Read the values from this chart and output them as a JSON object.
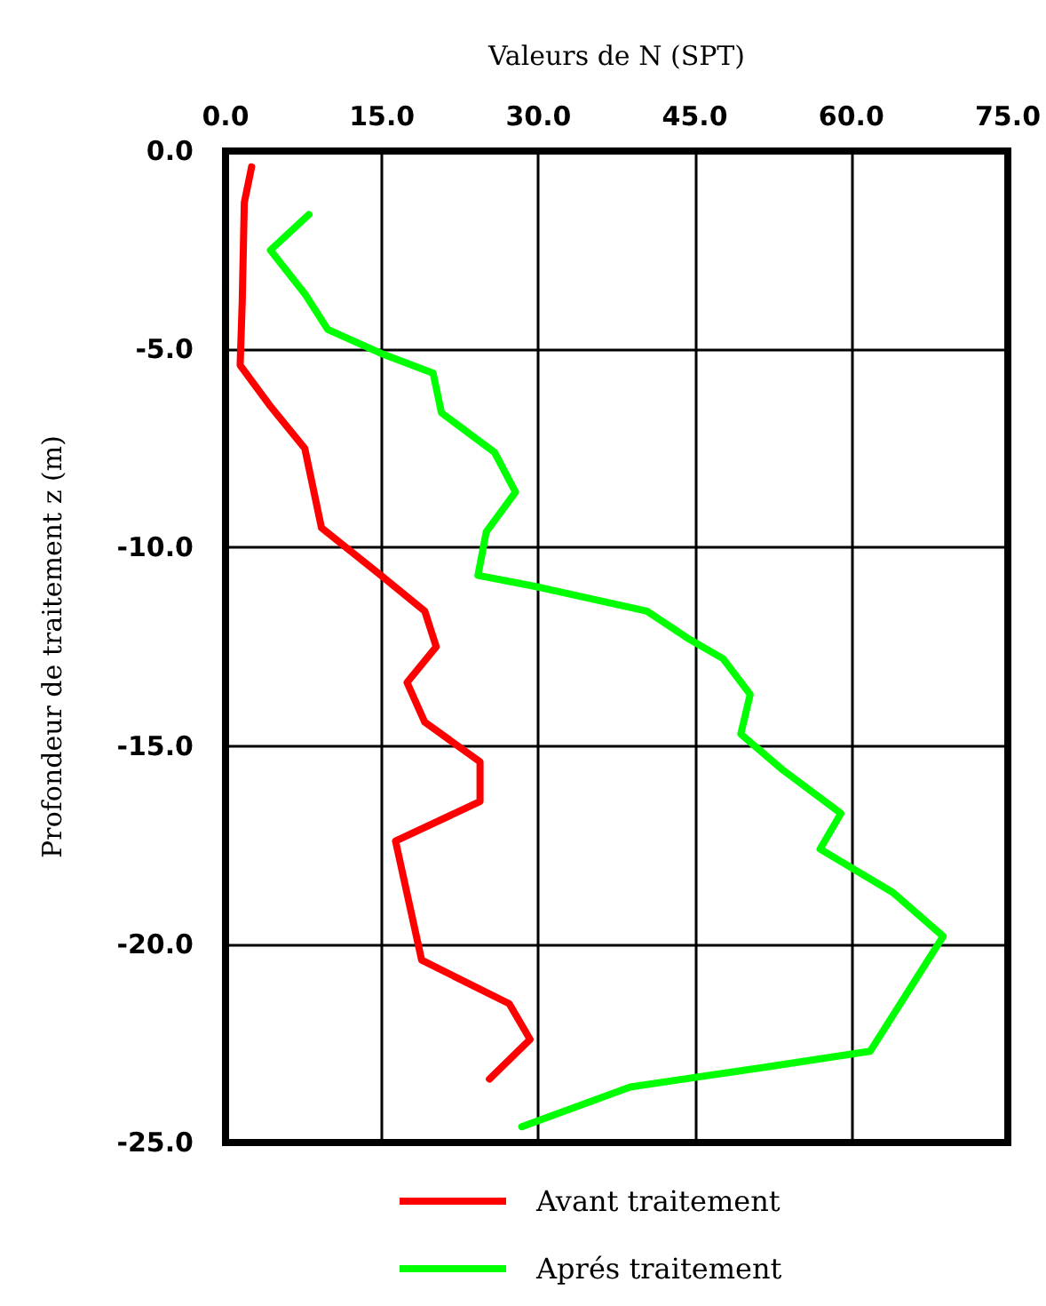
{
  "chart_data": {
    "type": "line",
    "xlabel": "Valeurs de N (SPT)",
    "ylabel": "Profondeur de traitement z (m)",
    "xlim": [
      0,
      75
    ],
    "xticks": [
      {
        "value": 0,
        "label": "0.0"
      },
      {
        "value": 15,
        "label": "15.0"
      },
      {
        "value": 30,
        "label": "30.0"
      },
      {
        "value": 45,
        "label": "45.0"
      },
      {
        "value": 60,
        "label": "60.0"
      },
      {
        "value": 75,
        "label": "75.0"
      }
    ],
    "ylim": [
      -25,
      0
    ],
    "yticks": [
      {
        "value": 0,
        "label": "0.0"
      },
      {
        "value": -5,
        "label": "-5.0"
      },
      {
        "value": -10,
        "label": "-10.0"
      },
      {
        "value": -15,
        "label": "-15.0"
      },
      {
        "value": -20,
        "label": "-20.0"
      },
      {
        "value": -25,
        "label": "-25.0"
      }
    ],
    "grid": true,
    "legend": "bottom",
    "marker": "none",
    "line_style": "solid",
    "series": [
      {
        "name": "Avant traitement",
        "color": "#ff0000",
        "x": [
          2.5,
          1.8,
          1.6,
          1.4,
          4.2,
          7.6,
          9.2,
          14.9,
          19.1,
          20.2,
          17.4,
          19.1,
          24.4,
          24.4,
          16.3,
          18.8,
          27.2,
          29.2,
          25.3
        ],
        "values": [
          -0.4,
          -1.3,
          -3.8,
          -5.4,
          -6.4,
          -7.5,
          -9.5,
          -10.7,
          -11.6,
          -12.5,
          -13.4,
          -14.4,
          -15.4,
          -16.4,
          -17.4,
          -20.4,
          -21.5,
          -22.4,
          -23.4
        ]
      },
      {
        "name": "Aprés traitement",
        "color": "#00ff00",
        "x": [
          8.0,
          4.3,
          7.6,
          9.8,
          14.9,
          19.9,
          20.7,
          25.8,
          27.8,
          25.0,
          24.2,
          30.1,
          40.4,
          44.4,
          47.7,
          50.3,
          49.4,
          53.4,
          59.0,
          57.0,
          64.0,
          68.8,
          61.8,
          51.7,
          38.8,
          28.4
        ],
        "values": [
          -1.6,
          -2.5,
          -3.6,
          -4.5,
          -5.1,
          -5.6,
          -6.6,
          -7.6,
          -8.6,
          -9.6,
          -10.7,
          -11.0,
          -11.6,
          -12.3,
          -12.8,
          -13.7,
          -14.7,
          -15.6,
          -16.7,
          -17.6,
          -18.7,
          -19.8,
          -22.7,
          -23.1,
          -23.6,
          -24.6
        ]
      }
    ]
  }
}
